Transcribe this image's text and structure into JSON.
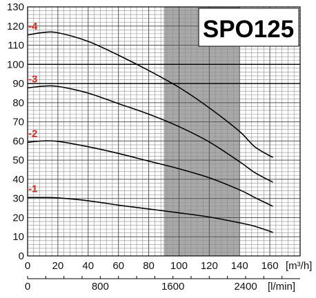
{
  "chart_data": {
    "type": "line",
    "title": "SPO125",
    "x_unit_top": "[m³/h]",
    "x_unit_bottom": "[l/min]",
    "xlim": [
      0,
      180
    ],
    "ylim": [
      0,
      130
    ],
    "x_ticks": [
      0,
      20,
      40,
      60,
      80,
      100,
      120,
      140,
      160
    ],
    "x_ticks_lpm": [
      0,
      800,
      1600,
      2400
    ],
    "y_ticks": [
      0,
      10,
      20,
      30,
      40,
      50,
      60,
      70,
      80,
      90,
      100,
      110,
      120,
      130
    ],
    "highlight_lines_y": [
      90,
      100
    ],
    "shaded_range_x": [
      90,
      140
    ],
    "grid": true,
    "series": [
      {
        "name": "-1",
        "x": [
          0,
          10,
          20,
          40,
          60,
          80,
          100,
          120,
          140,
          150,
          162
        ],
        "y": [
          30.5,
          30.5,
          30.3,
          28.8,
          26.5,
          24.5,
          22.5,
          20.3,
          17.3,
          15.5,
          12.3
        ]
      },
      {
        "name": "-2",
        "x": [
          0,
          10,
          20,
          40,
          60,
          80,
          100,
          120,
          140,
          150,
          162
        ],
        "y": [
          59.3,
          60,
          59.8,
          57,
          53.5,
          49.5,
          45.5,
          40.8,
          34.5,
          30.5,
          25.9
        ]
      },
      {
        "name": "-3",
        "x": [
          0,
          10,
          20,
          40,
          60,
          80,
          100,
          120,
          140,
          150,
          162
        ],
        "y": [
          87.7,
          88.6,
          88.5,
          85,
          79.5,
          74,
          67.5,
          59.5,
          49.2,
          43.5,
          38.5
        ]
      },
      {
        "name": "-4",
        "x": [
          0,
          10,
          20,
          40,
          60,
          80,
          100,
          120,
          140,
          150,
          162
        ],
        "y": [
          115.3,
          116.6,
          116.5,
          112,
          104.8,
          96.8,
          88,
          77.3,
          65,
          57,
          51.4
        ]
      }
    ],
    "label_colors": {
      "curve_label": "#e0281e",
      "shade": "#a9a9a9"
    }
  }
}
